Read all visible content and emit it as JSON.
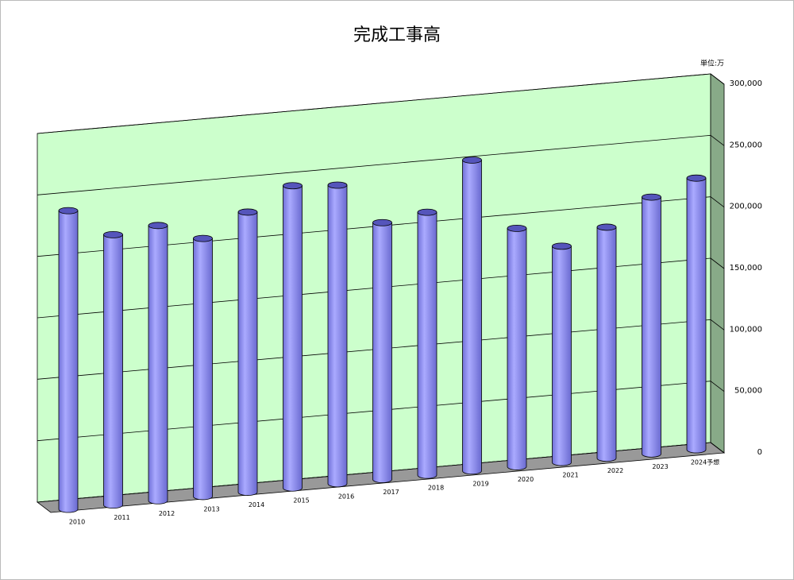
{
  "chart_data": {
    "type": "bar",
    "title": "完成工事高",
    "unit_label": "単位:万",
    "categories": [
      "2010",
      "2011",
      "2012",
      "2013",
      "2014",
      "2015",
      "2016",
      "2017",
      "2018",
      "2019",
      "2020",
      "2021",
      "2022",
      "2023",
      "2024予想"
    ],
    "values": [
      243000,
      220000,
      224000,
      210000,
      228000,
      246000,
      243000,
      209000,
      214000,
      253000,
      194000,
      176000,
      188000,
      209000,
      221000
    ],
    "color": "#9999ff",
    "ylim": [
      0,
      300000
    ],
    "yticks": [
      0,
      {
        "value": 50000,
        "label": "50,000"
      },
      {
        "value": 100000,
        "label": "100,000"
      },
      {
        "value": 150000,
        "label": "150,000"
      },
      {
        "value": 200000,
        "label": "200,000"
      },
      {
        "value": 250000,
        "label": "250,000"
      },
      {
        "value": 300000,
        "label": "300,000"
      }
    ],
    "grid": true
  }
}
